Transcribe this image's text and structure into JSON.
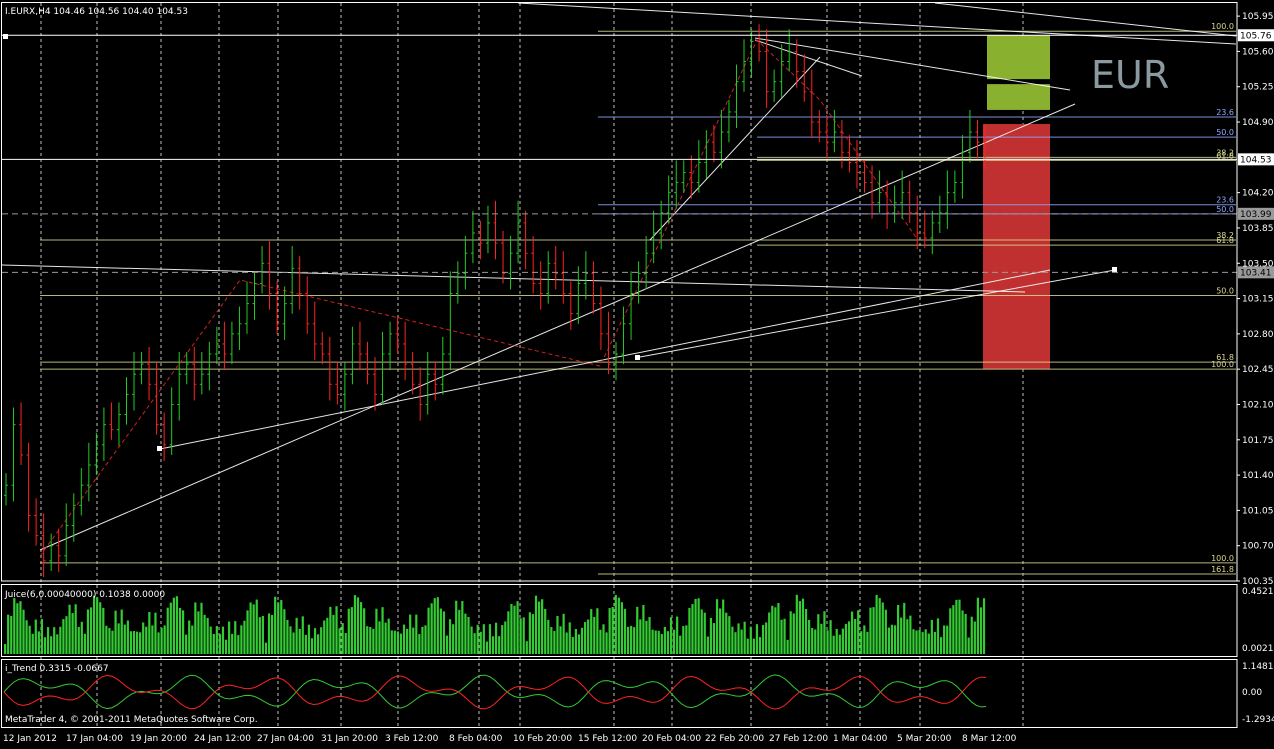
{
  "window": {
    "symbol_header": "I.EURX,H4  104.46 104.56 104.40 104.53",
    "watermark": "EUR",
    "copyright": "MetaTrader 4, © 2001-2011 MetaQuotes Software Corp."
  },
  "colors": {
    "background": "#000000",
    "frame": "#ffffff",
    "bull_candle": "#22cc22",
    "bear_candle": "#ff2222",
    "fib_line": "#d8d890",
    "trend_line": "#ffffff",
    "grid": "#ffffff",
    "target_zone": "#8ab030",
    "stop_zone": "#c03030",
    "volume_bar": "#33cc33",
    "trend_green": "#33cc33",
    "trend_red": "#ff2222",
    "axis_text": "#ffffff"
  },
  "chart_data": {
    "type": "candlestick",
    "symbol": "I.EURX",
    "timeframe": "H4",
    "ohlc_current": {
      "open": 104.46,
      "high": 104.56,
      "low": 104.4,
      "close": 104.53
    },
    "ylim": [
      100.35,
      106.08
    ],
    "grid": "vertical-dashed",
    "price_ticks": [
      "105.95",
      "105.60",
      "105.25",
      "104.90",
      "104.20",
      "103.85",
      "103.50",
      "103.15",
      "102.80",
      "102.45",
      "102.10",
      "101.75",
      "101.40",
      "101.05",
      "100.70",
      "100.35"
    ],
    "highlighted_prices": [
      {
        "label": "105.76",
        "value": 105.76,
        "style": "solid"
      },
      {
        "label": "104.53",
        "value": 104.53,
        "style": "solid"
      },
      {
        "label": "103.99",
        "value": 103.99,
        "style": "dashed"
      },
      {
        "label": "103.41",
        "value": 103.41,
        "style": "dashed"
      }
    ],
    "time_ticks": [
      "12 Jan 2012",
      "17 Jan 04:00",
      "19 Jan 20:00",
      "24 Jan 12:00",
      "27 Jan 04:00",
      "31 Jan 20:00",
      "3 Feb 12:00",
      "8 Feb 04:00",
      "10 Feb 20:00",
      "15 Feb 12:00",
      "20 Feb 04:00",
      "22 Feb 20:00",
      "27 Feb 12:00",
      "1 Mar 04:00",
      "5 Mar 20:00",
      "8 Mar 12:00"
    ],
    "closes": [
      101.3,
      101.9,
      101.6,
      101.0,
      100.8,
      100.55,
      100.7,
      100.6,
      100.9,
      101.1,
      101.3,
      101.5,
      101.7,
      101.9,
      101.85,
      102.0,
      102.2,
      102.4,
      102.5,
      102.3,
      101.9,
      101.7,
      102.1,
      102.4,
      102.5,
      102.3,
      102.4,
      102.6,
      102.7,
      102.6,
      102.8,
      102.9,
      103.1,
      103.3,
      103.5,
      103.2,
      102.9,
      103.1,
      103.45,
      103.2,
      102.9,
      102.7,
      102.6,
      102.3,
      102.2,
      102.4,
      102.7,
      102.6,
      102.4,
      102.2,
      102.6,
      102.8,
      102.7,
      102.5,
      102.3,
      102.1,
      102.4,
      102.3,
      102.6,
      103.2,
      103.4,
      103.6,
      103.8,
      103.7,
      103.9,
      103.7,
      103.4,
      103.6,
      103.9,
      103.6,
      103.3,
      103.2,
      103.5,
      103.4,
      103.2,
      103.0,
      103.3,
      103.4,
      103.1,
      102.8,
      102.5,
      102.6,
      102.9,
      103.2,
      103.4,
      103.6,
      103.8,
      104.0,
      104.2,
      104.3,
      104.4,
      104.3,
      104.5,
      104.7,
      104.6,
      104.8,
      105.0,
      105.3,
      105.5,
      105.7,
      105.6,
      105.2,
      105.3,
      105.5,
      105.6,
      105.4,
      105.2,
      104.9,
      104.8,
      104.7,
      104.8,
      104.6,
      104.5,
      104.4,
      104.3,
      104.1,
      104.2,
      104.0,
      104.1,
      104.2,
      104.0,
      103.8,
      103.75,
      103.9,
      104.0,
      104.2,
      104.3,
      104.6,
      104.8,
      104.7,
      104.53
    ],
    "fib_levels": [
      {
        "label": "100.0",
        "value": 105.8
      },
      {
        "label": "23.6",
        "value": 104.95
      },
      {
        "label": "50.0",
        "value": 104.75
      },
      {
        "label": "38.2",
        "value": 104.55
      },
      {
        "label": "61.8",
        "value": 104.52
      },
      {
        "label": "23.6",
        "value": 104.08
      },
      {
        "label": "50.0",
        "value": 103.99
      },
      {
        "label": "38.2",
        "value": 103.73
      },
      {
        "label": "61.8",
        "value": 103.68
      },
      {
        "label": "50.0",
        "value": 103.18
      },
      {
        "label": "61.8",
        "value": 102.52
      },
      {
        "label": "100.0",
        "value": 102.45
      },
      {
        "label": "100.0",
        "value": 100.53
      },
      {
        "label": "161.8",
        "value": 100.42
      }
    ],
    "zones": {
      "target": {
        "from": 105.02,
        "to": 105.76
      },
      "stop": {
        "from": 102.45,
        "to": 104.88
      }
    },
    "indicators": [
      {
        "name": "Juice(6,0.00040000)",
        "values_label": "Juice(6,0.00040000) 0.1038 0.0000",
        "ticks": [
          "0.4521",
          "0.00215"
        ],
        "ylim": [
          0,
          0.4521
        ],
        "type": "histogram"
      },
      {
        "name": "i_Trend",
        "values_label": "i_Trend 0.3315 -0.0667",
        "ticks": [
          "1.1481",
          "0.00",
          "-1.2934"
        ],
        "ylim": [
          -1.2934,
          1.1481
        ],
        "type": "line"
      }
    ]
  }
}
